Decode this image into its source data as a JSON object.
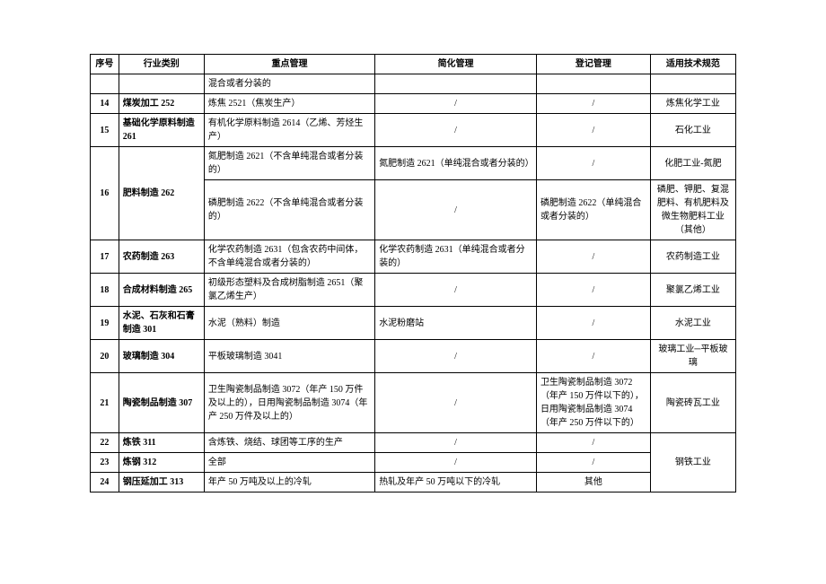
{
  "headers": {
    "num": "序号",
    "category": "行业类别",
    "key_mgmt": "重点管理",
    "simp_mgmt": "简化管理",
    "reg_mgmt": "登记管理",
    "tech_spec": "适用技术规范"
  },
  "pre_row": {
    "key": "混合或者分装的"
  },
  "r14": {
    "num": "14",
    "cat": "煤炭加工 252",
    "key": "炼焦 2521（焦炭生产）",
    "simp": "/",
    "reg": "/",
    "tech": "炼焦化学工业"
  },
  "r15": {
    "num": "15",
    "cat": "基础化学原料制造 261",
    "key": "有机化学原料制造 2614（乙烯、芳烃生产）",
    "simp": "/",
    "reg": "/",
    "tech": "石化工业"
  },
  "r16": {
    "num": "16",
    "cat": "肥料制造 262",
    "key1": "氮肥制造 2621（不含单纯混合或者分装的）",
    "simp1": "氮肥制造 2621（单纯混合或者分装的）",
    "reg1": "/",
    "tech1": "化肥工业-氮肥",
    "key2": "磷肥制造 2622（不含单纯混合或者分装的）",
    "simp2": "/",
    "reg2": "磷肥制造 2622（单纯混合或者分装的）",
    "tech2": "磷肥、钾肥、复混肥料、有机肥料及微生物肥料工业（其他）"
  },
  "r17": {
    "num": "17",
    "cat": "农药制造 263",
    "key": "化学农药制造 2631（包含农药中间体，不含单纯混合或者分装的）",
    "simp": "化学农药制造 2631（单纯混合或者分装的）",
    "reg": "/",
    "tech": "农药制造工业"
  },
  "r18": {
    "num": "18",
    "cat": "合成材料制造 265",
    "key": "初级形态塑料及合成树脂制造 2651（聚氯乙烯生产）",
    "simp": "/",
    "reg": "/",
    "tech": "聚氯乙烯工业"
  },
  "r19": {
    "num": "19",
    "cat": "水泥、石灰和石膏制造 301",
    "key": "水泥（熟料）制造",
    "simp": "水泥粉磨站",
    "reg": "/",
    "tech": "水泥工业"
  },
  "r20": {
    "num": "20",
    "cat": "玻璃制造 304",
    "key": "平板玻璃制造 3041",
    "simp": "/",
    "reg": "/",
    "tech": "玻璃工业─平板玻璃"
  },
  "r21": {
    "num": "21",
    "cat": "陶瓷制品制造 307",
    "key": "卫生陶瓷制品制造 3072（年产 150 万件及以上的），日用陶瓷制品制造 3074（年产 250 万件及以上的）",
    "simp": "/",
    "reg": "卫生陶瓷制品制造 3072（年产 150 万件以下的），日用陶瓷制品制造 3074（年产 250 万件以下的）",
    "tech": "陶瓷砖瓦工业"
  },
  "r22": {
    "num": "22",
    "cat": "炼铁 311",
    "key": "含炼铁、烧结、球团等工序的生产",
    "simp": "/",
    "reg": "/"
  },
  "r23": {
    "num": "23",
    "cat": "炼钢 312",
    "key": "全部",
    "simp": "/",
    "reg": "/",
    "tech": "钢铁工业"
  },
  "r24": {
    "num": "24",
    "cat": "钢压延加工 313",
    "key": "年产 50 万吨及以上的冷轧",
    "simp": "热轧及年产 50 万吨以下的冷轧",
    "reg": "其他"
  },
  "style": {
    "font_family": "SimSun",
    "font_size_pt": 10,
    "border_color": "#000000",
    "background_color": "#ffffff",
    "text_color": "#000000"
  }
}
